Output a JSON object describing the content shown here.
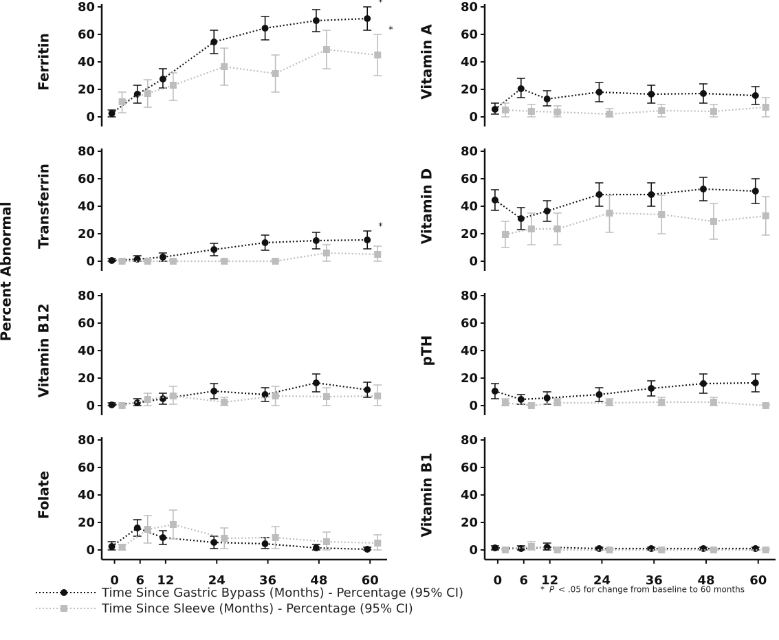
{
  "y_axis_label": "Percent Abnormal",
  "footnote": {
    "marker": "*",
    "p": "P",
    "text": "< .05 for change from baseline to 60 months"
  },
  "chart_data": [
    {
      "type": "line",
      "title": "Ferritin",
      "x": [
        0,
        6,
        12,
        24,
        36,
        48,
        60
      ],
      "xlim": [
        -3,
        64
      ],
      "ylim": [
        -7,
        82
      ],
      "yticks": [
        0,
        20,
        40,
        60,
        80
      ],
      "series": [
        {
          "name": "Time Since Gastric Bypass (Months) - Percentage (95% CI)",
          "color": "#111111",
          "marker": "circle",
          "annotation": "*",
          "values": [
            2.5,
            16.5,
            27.5,
            54.5,
            64.5,
            70,
            71.5
          ],
          "ci_low": [
            0,
            10,
            21,
            46,
            56,
            62,
            63
          ],
          "ci_high": [
            5,
            23,
            35,
            63,
            73,
            78,
            80
          ]
        },
        {
          "name": "Time Since Sleeve (Months) - Percentage (95% CI)",
          "color": "#bdbdbd",
          "marker": "square",
          "annotation": "*",
          "values": [
            11,
            17,
            23,
            36.5,
            31.5,
            49,
            45
          ],
          "ci_low": [
            3,
            7,
            12,
            23,
            18,
            35,
            30
          ],
          "ci_high": [
            18,
            27,
            32,
            50,
            45,
            63,
            60
          ]
        }
      ]
    },
    {
      "type": "line",
      "title": "Vitamin A",
      "x": [
        0,
        6,
        12,
        24,
        36,
        48,
        60
      ],
      "xlim": [
        -3,
        64
      ],
      "ylim": [
        -7,
        82
      ],
      "yticks": [
        0,
        20,
        40,
        60,
        80
      ],
      "series": [
        {
          "name": "Time Since Gastric Bypass (Months) - Percentage (95% CI)",
          "color": "#111111",
          "marker": "circle",
          "values": [
            5.5,
            20.5,
            13,
            18,
            16.5,
            17,
            15.5
          ],
          "ci_low": [
            2,
            14,
            8,
            11,
            10,
            10,
            9
          ],
          "ci_high": [
            10,
            28,
            19,
            25,
            23,
            24,
            22
          ]
        },
        {
          "name": "Time Since Sleeve (Months) - Percentage (95% CI)",
          "color": "#bdbdbd",
          "marker": "square",
          "values": [
            5,
            4,
            3.5,
            2,
            4.5,
            4,
            7
          ],
          "ci_low": [
            0,
            0,
            0,
            0,
            0,
            0,
            0
          ],
          "ci_high": [
            10,
            9,
            8,
            6,
            9,
            9,
            14
          ]
        }
      ]
    },
    {
      "type": "line",
      "title": "Transferrin",
      "x": [
        0,
        6,
        12,
        24,
        36,
        48,
        60
      ],
      "xlim": [
        -3,
        64
      ],
      "ylim": [
        -7,
        82
      ],
      "yticks": [
        0,
        20,
        40,
        60,
        80
      ],
      "series": [
        {
          "name": "Time Since Gastric Bypass (Months) - Percentage (95% CI)",
          "color": "#111111",
          "marker": "circle",
          "annotation": "*",
          "values": [
            0.5,
            1.5,
            3,
            8.5,
            13.5,
            15,
            15.5
          ],
          "ci_low": [
            0,
            0,
            0,
            4,
            8,
            9,
            9
          ],
          "ci_high": [
            2,
            4,
            6,
            13,
            19,
            21,
            22
          ]
        },
        {
          "name": "Time Since Sleeve (Months) - Percentage (95% CI)",
          "color": "#bdbdbd",
          "marker": "square",
          "values": [
            0,
            0,
            0,
            0,
            0,
            6,
            5
          ],
          "ci_low": [
            0,
            0,
            0,
            0,
            0,
            0,
            0
          ],
          "ci_high": [
            1,
            1,
            1,
            1,
            1,
            12,
            11
          ]
        }
      ]
    },
    {
      "type": "line",
      "title": "Vitamin D",
      "x": [
        0,
        6,
        12,
        24,
        36,
        48,
        60
      ],
      "xlim": [
        -3,
        64
      ],
      "ylim": [
        -7,
        82
      ],
      "yticks": [
        0,
        20,
        40,
        60,
        80
      ],
      "series": [
        {
          "name": "Time Since Gastric Bypass (Months) - Percentage (95% CI)",
          "color": "#111111",
          "marker": "circle",
          "values": [
            44.5,
            31,
            36.5,
            48.5,
            48.5,
            52.5,
            51
          ],
          "ci_low": [
            37,
            23,
            29,
            40,
            40,
            44,
            42
          ],
          "ci_high": [
            52,
            39,
            44,
            57,
            57,
            61,
            60
          ]
        },
        {
          "name": "Time Since Sleeve (Months) - Percentage (95% CI)",
          "color": "#bdbdbd",
          "marker": "square",
          "values": [
            19.5,
            23.5,
            23.5,
            35,
            34,
            29,
            33
          ],
          "ci_low": [
            10,
            12,
            12,
            21,
            20,
            16,
            19
          ],
          "ci_high": [
            29,
            35,
            35,
            48,
            48,
            42,
            47
          ]
        }
      ]
    },
    {
      "type": "line",
      "title": "Vitamin B12",
      "x": [
        0,
        6,
        12,
        24,
        36,
        48,
        60
      ],
      "xlim": [
        -3,
        64
      ],
      "ylim": [
        -7,
        82
      ],
      "yticks": [
        0,
        20,
        40,
        60,
        80
      ],
      "series": [
        {
          "name": "Time Since Gastric Bypass (Months) - Percentage (95% CI)",
          "color": "#111111",
          "marker": "circle",
          "values": [
            0.5,
            2,
            5,
            10.5,
            8,
            16.5,
            11.5
          ],
          "ci_low": [
            0,
            0,
            1,
            5,
            3,
            10,
            6
          ],
          "ci_high": [
            2,
            5,
            9,
            16,
            13,
            23,
            17
          ]
        },
        {
          "name": "Time Since Sleeve (Months) - Percentage (95% CI)",
          "color": "#bdbdbd",
          "marker": "square",
          "values": [
            0,
            4.5,
            7,
            2.5,
            7,
            6.5,
            7
          ],
          "ci_low": [
            0,
            0,
            1,
            0,
            0,
            0,
            0
          ],
          "ci_high": [
            1,
            9,
            14,
            6,
            14,
            13,
            15
          ]
        }
      ]
    },
    {
      "type": "line",
      "title": "pTH",
      "x": [
        0,
        6,
        12,
        24,
        36,
        48,
        60
      ],
      "xlim": [
        -3,
        64
      ],
      "ylim": [
        -7,
        82
      ],
      "yticks": [
        0,
        20,
        40,
        60,
        80
      ],
      "series": [
        {
          "name": "Time Since Gastric Bypass (Months) - Percentage (95% CI)",
          "color": "#111111",
          "marker": "circle",
          "values": [
            10.5,
            4.5,
            5.5,
            8,
            12.5,
            16,
            16.5
          ],
          "ci_low": [
            5,
            1,
            1,
            3,
            7,
            9,
            10
          ],
          "ci_high": [
            16,
            8,
            10,
            13,
            18,
            23,
            23
          ]
        },
        {
          "name": "Time Since Sleeve (Months) - Percentage (95% CI)",
          "color": "#bdbdbd",
          "marker": "square",
          "values": [
            2,
            0,
            2,
            2,
            2.5,
            2.5,
            0
          ],
          "ci_low": [
            0,
            0,
            0,
            0,
            0,
            0,
            0
          ],
          "ci_high": [
            5,
            1,
            5,
            5,
            6,
            6,
            1
          ]
        }
      ]
    },
    {
      "type": "line",
      "title": "Folate",
      "x": [
        0,
        6,
        12,
        24,
        36,
        48,
        60
      ],
      "xlim": [
        -3,
        64
      ],
      "ylim": [
        -7,
        82
      ],
      "yticks": [
        0,
        20,
        40,
        60,
        80
      ],
      "xticks": [
        0,
        6,
        12,
        24,
        36,
        48,
        60
      ],
      "series": [
        {
          "name": "Time Since Gastric Bypass (Months) - Percentage (95% CI)",
          "color": "#111111",
          "marker": "circle",
          "values": [
            2.5,
            16,
            9,
            5.5,
            4.5,
            1.5,
            0.5
          ],
          "ci_low": [
            0,
            10,
            4,
            1,
            1,
            0,
            0
          ],
          "ci_high": [
            6,
            22,
            14,
            10,
            9,
            4,
            2
          ]
        },
        {
          "name": "Time Since Sleeve (Months) - Percentage (95% CI)",
          "color": "#bdbdbd",
          "marker": "square",
          "values": [
            2,
            15,
            18.5,
            8.5,
            9,
            6,
            5
          ],
          "ci_low": [
            0,
            5,
            8,
            1,
            1,
            0,
            0
          ],
          "ci_high": [
            4,
            25,
            29,
            16,
            17,
            13,
            11
          ]
        }
      ]
    },
    {
      "type": "line",
      "title": "Vitamin B1",
      "x": [
        0,
        6,
        12,
        24,
        36,
        48,
        60
      ],
      "xlim": [
        -3,
        64
      ],
      "ylim": [
        -7,
        82
      ],
      "yticks": [
        0,
        20,
        40,
        60,
        80
      ],
      "xticks": [
        0,
        6,
        12,
        24,
        36,
        48,
        60
      ],
      "series": [
        {
          "name": "Time Since Gastric Bypass (Months) - Percentage (95% CI)",
          "color": "#111111",
          "marker": "circle",
          "values": [
            1.5,
            1,
            2,
            1,
            1,
            1,
            1
          ],
          "ci_low": [
            0,
            0,
            0,
            0,
            0,
            0,
            0
          ],
          "ci_high": [
            3,
            3,
            5,
            2,
            2,
            2,
            2
          ]
        },
        {
          "name": "Time Since Sleeve (Months) - Percentage (95% CI)",
          "color": "#bdbdbd",
          "marker": "square",
          "values": [
            0,
            2.5,
            0,
            0,
            0,
            0,
            0
          ],
          "ci_low": [
            0,
            0,
            0,
            0,
            0,
            0,
            0
          ],
          "ci_high": [
            1,
            6,
            1,
            1,
            1,
            1,
            1
          ]
        }
      ]
    }
  ]
}
